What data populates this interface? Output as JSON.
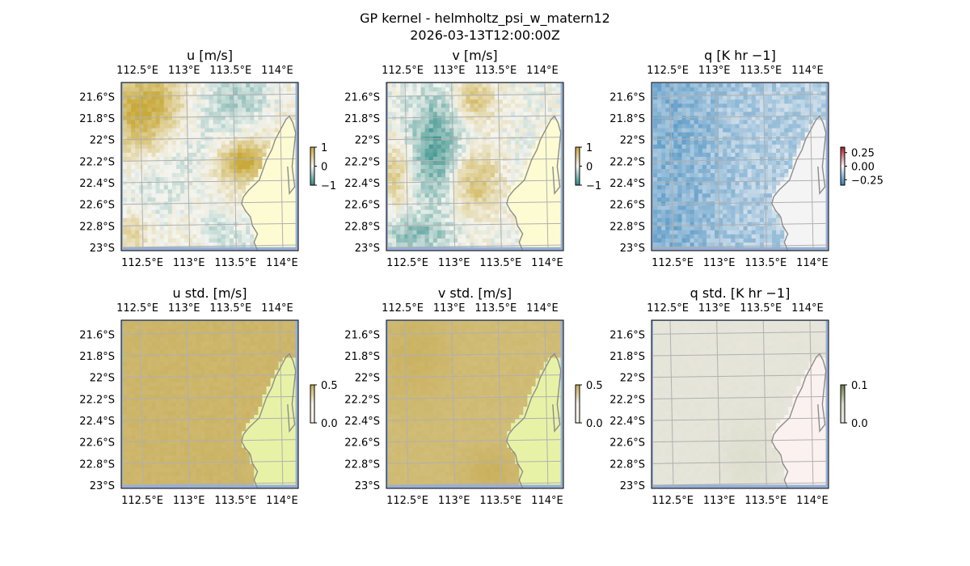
{
  "figure": {
    "title_line1": "GP kernel - helmholtz_psi_w_matern12",
    "title_line2": "2026-03-13T12:00:00Z"
  },
  "colors": {
    "land": "#fdfbd2",
    "ocean_edge": "#96afd6",
    "grid": "#b0b0b0",
    "coast": "#8c8c8c",
    "brbg_low": "#2f8b86",
    "brbg_mid": "#f5f5f0",
    "brbg_high": "#c8a93a",
    "rdbu_low": "#2f7fb8",
    "rdbu_mid": "#f7f7f7",
    "rdbu_high": "#b2182b",
    "std_low": "#f5f2e8",
    "std_high": "#c6ac55",
    "std_land": "#e8f2a6",
    "qstd_ocean": "#ece9e2",
    "qstd_land": "#fbf1ef"
  },
  "chart_data": [
    {
      "type": "heatmap",
      "title": "u [m/s]",
      "lon_ticks": [
        "112.5°E",
        "113°E",
        "113.5°E",
        "114°E"
      ],
      "lat_ticks": [
        "21.6°S",
        "21.8°S",
        "22°S",
        "22.2°S",
        "22.4°S",
        "22.6°S",
        "22.8°S",
        "23°S"
      ],
      "colorbar": {
        "ticks": [
          "1",
          "0",
          "−1"
        ],
        "range": [
          -1,
          1
        ],
        "cmap": "BrBG"
      }
    },
    {
      "type": "heatmap",
      "title": "v [m/s]",
      "lon_ticks": [
        "112.5°E",
        "113°E",
        "113.5°E",
        "114°E"
      ],
      "lat_ticks": [
        "21.6°S",
        "21.8°S",
        "22°S",
        "22.2°S",
        "22.4°S",
        "22.6°S",
        "22.8°S",
        "23°S"
      ],
      "colorbar": {
        "ticks": [
          "1",
          "0",
          "−1"
        ],
        "range": [
          -1,
          1
        ],
        "cmap": "BrBG"
      }
    },
    {
      "type": "heatmap",
      "title": "q [K hr −1]",
      "lon_ticks": [
        "112.5°E",
        "113°E",
        "113.5°E",
        "114°E"
      ],
      "lat_ticks": [
        "21.6°S",
        "21.8°S",
        "22°S",
        "22.2°S",
        "22.4°S",
        "22.6°S",
        "22.8°S",
        "23°S"
      ],
      "colorbar": {
        "ticks": [
          "0.25",
          "0.00",
          "−0.25"
        ],
        "range": [
          -0.35,
          0.35
        ],
        "cmap": "RdBu"
      }
    },
    {
      "type": "heatmap",
      "title": "u std. [m/s]",
      "lon_ticks": [
        "112.5°E",
        "113°E",
        "113.5°E",
        "114°E"
      ],
      "lat_ticks": [
        "21.6°S",
        "21.8°S",
        "22°S",
        "22.2°S",
        "22.4°S",
        "22.6°S",
        "22.8°S",
        "23°S"
      ],
      "colorbar": {
        "ticks": [
          "0.5",
          "0.0"
        ],
        "range": [
          0,
          0.5
        ],
        "cmap": "std"
      }
    },
    {
      "type": "heatmap",
      "title": "v std. [m/s]",
      "lon_ticks": [
        "112.5°E",
        "113°E",
        "113.5°E",
        "114°E"
      ],
      "lat_ticks": [
        "21.6°S",
        "21.8°S",
        "22°S",
        "22.2°S",
        "22.4°S",
        "22.6°S",
        "22.8°S",
        "23°S"
      ],
      "colorbar": {
        "ticks": [
          "0.5",
          "0.0"
        ],
        "range": [
          0,
          0.5
        ],
        "cmap": "std"
      }
    },
    {
      "type": "heatmap",
      "title": "q std. [K hr −1]",
      "lon_ticks": [
        "112.5°E",
        "113°E",
        "113.5°E",
        "114°E"
      ],
      "lat_ticks": [
        "21.6°S",
        "21.8°S",
        "22°S",
        "22.2°S",
        "22.4°S",
        "22.6°S",
        "22.8°S",
        "23°S"
      ],
      "colorbar": {
        "ticks": [
          "0.1",
          "0.0"
        ],
        "range": [
          0,
          0.1
        ],
        "cmap": "qstd"
      }
    }
  ]
}
